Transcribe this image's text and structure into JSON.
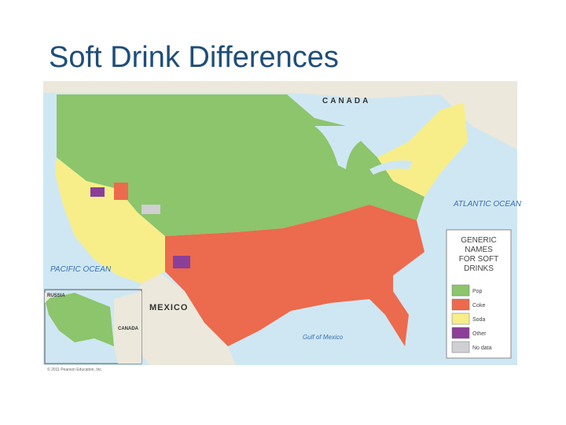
{
  "title": "Soft Drink Differences",
  "map": {
    "labels": {
      "canada": "CANADA",
      "atlantic": "ATLANTIC OCEAN",
      "pacific": "PACIFIC OCEAN",
      "mexico": "MEXICO",
      "gulf": "Gulf of Mexico",
      "russia": "RUSSIA",
      "canada_inset": "CANADA"
    },
    "legend": {
      "title": "GENERIC NAMES FOR SOFT DRINKS",
      "items": [
        {
          "name": "Pop",
          "color": "#8cc56b"
        },
        {
          "name": "Coke",
          "color": "#ec6a4d"
        },
        {
          "name": "Soda",
          "color": "#f7ee8a"
        },
        {
          "name": "Other",
          "color": "#8b3f98"
        },
        {
          "name": "No data",
          "color": "#cfcfd4"
        }
      ]
    },
    "credit": "© 2011 Pearson Education, Inc."
  }
}
